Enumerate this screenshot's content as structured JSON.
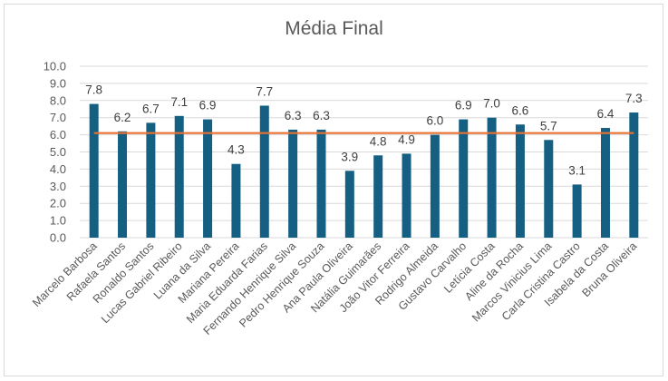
{
  "chart_data": {
    "type": "bar",
    "title": "Média Final",
    "xlabel": "",
    "ylabel": "",
    "ylim": [
      0,
      10
    ],
    "yticks": [
      "0.0",
      "1.0",
      "2.0",
      "3.0",
      "4.0",
      "5.0",
      "6.0",
      "7.0",
      "8.0",
      "9.0",
      "10.0"
    ],
    "grid": true,
    "categories": [
      "Marcelo Barbosa",
      "Rafaela Santos",
      "Ronaldo Santos",
      "Lucas Gabriel Ribeiro",
      "Luana da Silva",
      "Mariana Pereira",
      "Maria Eduarda Farias",
      "Fernando Henrique Silva",
      "Pedro Henrique Souza",
      "Ana Paula Oliveira",
      "Natália Guimarães",
      "João Vitor Ferreira",
      "Rodrigo Almeida",
      "Gustavo Carvalho",
      "Letícia Costa",
      "Aline da Rocha",
      "Marcos Vinicius Lima",
      "Carla Cristina Castro",
      "Isabela da Costa",
      "Bruna Oliveira"
    ],
    "values": [
      7.8,
      6.2,
      6.7,
      7.1,
      6.9,
      4.3,
      7.7,
      6.3,
      6.3,
      3.9,
      4.8,
      4.9,
      6.0,
      6.9,
      7.0,
      6.6,
      5.7,
      3.1,
      6.4,
      7.3
    ],
    "data_labels": [
      "7.8",
      "6.2",
      "6.7",
      "7.1",
      "6.9",
      "4.3",
      "7.7",
      "6.3",
      "6.3",
      "3.9",
      "4.8",
      "4.9",
      "6.0",
      "6.9",
      "7.0",
      "6.6",
      "5.7",
      "3.1",
      "6.4",
      "7.3"
    ],
    "reference_line": {
      "type": "line",
      "value": 6.1
    },
    "colors": {
      "bars": "#155f82",
      "line": "#e97132",
      "grid": "#d9d9d9"
    }
  }
}
